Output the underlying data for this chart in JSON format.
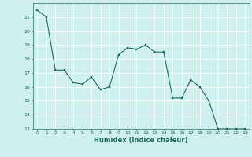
{
  "x": [
    0,
    1,
    2,
    3,
    4,
    5,
    6,
    7,
    8,
    9,
    10,
    11,
    12,
    13,
    14,
    15,
    16,
    17,
    18,
    19,
    20,
    21,
    22,
    23
  ],
  "y": [
    21.5,
    21.0,
    17.2,
    17.2,
    16.3,
    16.2,
    16.7,
    15.8,
    16.0,
    18.3,
    18.8,
    18.7,
    19.0,
    18.5,
    18.5,
    15.2,
    15.2,
    16.5,
    16.0,
    15.0,
    13.0,
    13.0,
    13.0,
    13.0
  ],
  "xlim": [
    -0.5,
    23.5
  ],
  "ylim": [
    13,
    22
  ],
  "yticks": [
    13,
    14,
    15,
    16,
    17,
    18,
    19,
    20,
    21
  ],
  "xticks": [
    0,
    1,
    2,
    3,
    4,
    5,
    6,
    7,
    8,
    9,
    10,
    11,
    12,
    13,
    14,
    15,
    16,
    17,
    18,
    19,
    20,
    21,
    22,
    23
  ],
  "xlabel": "Humidex (Indice chaleur)",
  "line_color": "#1e6b5e",
  "marker": "s",
  "marker_size": 2,
  "bg_color": "#cff0ee",
  "grid_color": "#ffffff"
}
